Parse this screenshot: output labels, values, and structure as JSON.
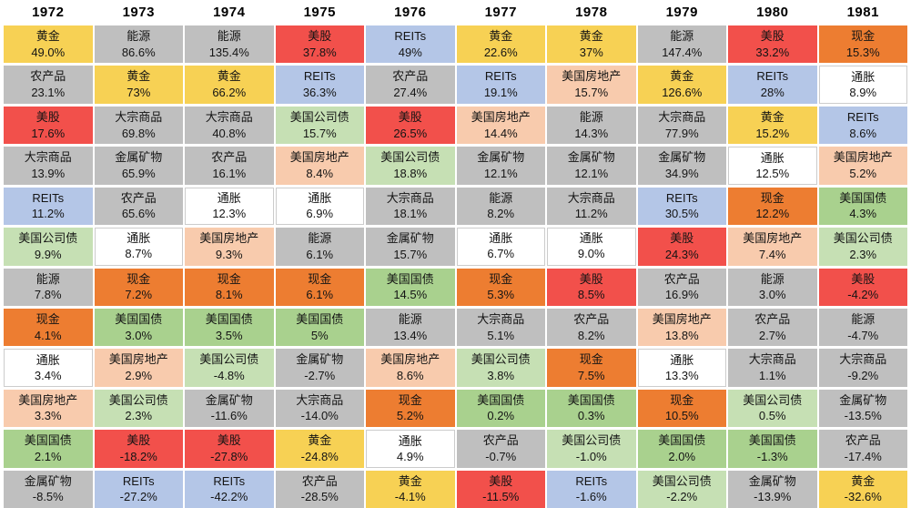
{
  "table": {
    "assets": {
      "gold": {
        "label": "黄金",
        "color": "#F7D154"
      },
      "energy": {
        "label": "能源",
        "color": "#BFBFBF"
      },
      "stocks": {
        "label": "美股",
        "color": "#F2504B"
      },
      "reits": {
        "label": "REITs",
        "color": "#B4C6E7"
      },
      "cash": {
        "label": "现金",
        "color": "#ED7D31"
      },
      "agri": {
        "label": "农产品",
        "color": "#BFBFBF"
      },
      "commodities": {
        "label": "大宗商品",
        "color": "#BFBFBF"
      },
      "corp_bonds": {
        "label": "美国公司债",
        "color": "#C6E0B4"
      },
      "metals": {
        "label": "金属矿物",
        "color": "#BFBFBF"
      },
      "inflation": {
        "label": "通胀",
        "color": "#FFFFFF"
      },
      "real_estate": {
        "label": "美国房地产",
        "color": "#F8CBAD"
      },
      "treasuries": {
        "label": "美国国债",
        "color": "#A9D18E"
      }
    },
    "columns": [
      {
        "year": "1972",
        "cells": [
          {
            "asset": "gold",
            "value": "49.0%"
          },
          {
            "asset": "agri",
            "value": "23.1%"
          },
          {
            "asset": "stocks",
            "value": "17.6%"
          },
          {
            "asset": "commodities",
            "value": "13.9%"
          },
          {
            "asset": "reits",
            "value": "11.2%"
          },
          {
            "asset": "corp_bonds",
            "value": "9.9%"
          },
          {
            "asset": "energy",
            "value": "7.8%"
          },
          {
            "asset": "cash",
            "value": "4.1%"
          },
          {
            "asset": "inflation",
            "value": "3.4%"
          },
          {
            "asset": "real_estate",
            "value": "3.3%"
          },
          {
            "asset": "treasuries",
            "value": "2.1%"
          },
          {
            "asset": "metals",
            "value": "-8.5%"
          }
        ]
      },
      {
        "year": "1973",
        "cells": [
          {
            "asset": "energy",
            "value": "86.6%"
          },
          {
            "asset": "gold",
            "value": "73%"
          },
          {
            "asset": "commodities",
            "value": "69.8%"
          },
          {
            "asset": "metals",
            "value": "65.9%"
          },
          {
            "asset": "agri",
            "value": "65.6%"
          },
          {
            "asset": "inflation",
            "value": "8.7%"
          },
          {
            "asset": "cash",
            "value": "7.2%"
          },
          {
            "asset": "treasuries",
            "value": "3.0%"
          },
          {
            "asset": "real_estate",
            "value": "2.9%"
          },
          {
            "asset": "corp_bonds",
            "value": "2.3%"
          },
          {
            "asset": "stocks",
            "value": "-18.2%"
          },
          {
            "asset": "reits",
            "value": "-27.2%"
          }
        ]
      },
      {
        "year": "1974",
        "cells": [
          {
            "asset": "energy",
            "value": "135.4%"
          },
          {
            "asset": "gold",
            "value": "66.2%"
          },
          {
            "asset": "commodities",
            "value": "40.8%"
          },
          {
            "asset": "agri",
            "value": "16.1%"
          },
          {
            "asset": "inflation",
            "value": "12.3%"
          },
          {
            "asset": "real_estate",
            "value": "9.3%"
          },
          {
            "asset": "cash",
            "value": "8.1%"
          },
          {
            "asset": "treasuries",
            "value": "3.5%"
          },
          {
            "asset": "corp_bonds",
            "value": "-4.8%"
          },
          {
            "asset": "metals",
            "value": "-11.6%"
          },
          {
            "asset": "stocks",
            "value": "-27.8%"
          },
          {
            "asset": "reits",
            "value": "-42.2%"
          }
        ]
      },
      {
        "year": "1975",
        "cells": [
          {
            "asset": "stocks",
            "value": "37.8%"
          },
          {
            "asset": "reits",
            "value": "36.3%"
          },
          {
            "asset": "corp_bonds",
            "value": "15.7%"
          },
          {
            "asset": "real_estate",
            "value": "8.4%"
          },
          {
            "asset": "inflation",
            "value": "6.9%"
          },
          {
            "asset": "energy",
            "value": "6.1%"
          },
          {
            "asset": "cash",
            "value": "6.1%"
          },
          {
            "asset": "treasuries",
            "value": "5%"
          },
          {
            "asset": "metals",
            "value": "-2.7%"
          },
          {
            "asset": "commodities",
            "value": "-14.0%"
          },
          {
            "asset": "gold",
            "value": "-24.8%"
          },
          {
            "asset": "agri",
            "value": "-28.5%"
          }
        ]
      },
      {
        "year": "1976",
        "cells": [
          {
            "asset": "reits",
            "value": "49%"
          },
          {
            "asset": "agri",
            "value": "27.4%"
          },
          {
            "asset": "stocks",
            "value": "26.5%"
          },
          {
            "asset": "corp_bonds",
            "value": "18.8%"
          },
          {
            "asset": "commodities",
            "value": "18.1%"
          },
          {
            "asset": "metals",
            "value": "15.7%"
          },
          {
            "asset": "treasuries",
            "value": "14.5%"
          },
          {
            "asset": "energy",
            "value": "13.4%"
          },
          {
            "asset": "real_estate",
            "value": "8.6%"
          },
          {
            "asset": "cash",
            "value": "5.2%"
          },
          {
            "asset": "inflation",
            "value": "4.9%"
          },
          {
            "asset": "gold",
            "value": "-4.1%"
          }
        ]
      },
      {
        "year": "1977",
        "cells": [
          {
            "asset": "gold",
            "value": "22.6%"
          },
          {
            "asset": "reits",
            "value": "19.1%"
          },
          {
            "asset": "real_estate",
            "value": "14.4%"
          },
          {
            "asset": "metals",
            "value": "12.1%"
          },
          {
            "asset": "energy",
            "value": "8.2%"
          },
          {
            "asset": "inflation",
            "value": "6.7%"
          },
          {
            "asset": "cash",
            "value": "5.3%"
          },
          {
            "asset": "commodities",
            "value": "5.1%"
          },
          {
            "asset": "corp_bonds",
            "value": "3.8%"
          },
          {
            "asset": "treasuries",
            "value": "0.2%"
          },
          {
            "asset": "agri",
            "value": "-0.7%"
          },
          {
            "asset": "stocks",
            "value": "-11.5%"
          }
        ]
      },
      {
        "year": "1978",
        "cells": [
          {
            "asset": "gold",
            "value": "37%"
          },
          {
            "asset": "real_estate",
            "value": "15.7%"
          },
          {
            "asset": "energy",
            "value": "14.3%"
          },
          {
            "asset": "metals",
            "value": "12.1%"
          },
          {
            "asset": "commodities",
            "value": "11.2%"
          },
          {
            "asset": "inflation",
            "value": "9.0%"
          },
          {
            "asset": "stocks",
            "value": "8.5%"
          },
          {
            "asset": "agri",
            "value": "8.2%"
          },
          {
            "asset": "cash",
            "value": "7.5%"
          },
          {
            "asset": "treasuries",
            "value": "0.3%"
          },
          {
            "asset": "corp_bonds",
            "value": "-1.0%"
          },
          {
            "asset": "reits",
            "value": "-1.6%"
          }
        ]
      },
      {
        "year": "1979",
        "cells": [
          {
            "asset": "energy",
            "value": "147.4%"
          },
          {
            "asset": "gold",
            "value": "126.6%"
          },
          {
            "asset": "commodities",
            "value": "77.9%"
          },
          {
            "asset": "metals",
            "value": "34.9%"
          },
          {
            "asset": "reits",
            "value": "30.5%"
          },
          {
            "asset": "stocks",
            "value": "24.3%"
          },
          {
            "asset": "agri",
            "value": "16.9%"
          },
          {
            "asset": "real_estate",
            "value": "13.8%"
          },
          {
            "asset": "inflation",
            "value": "13.3%"
          },
          {
            "asset": "cash",
            "value": "10.5%"
          },
          {
            "asset": "treasuries",
            "value": "2.0%"
          },
          {
            "asset": "corp_bonds",
            "value": "-2.2%"
          }
        ]
      },
      {
        "year": "1980",
        "cells": [
          {
            "asset": "stocks",
            "value": "33.2%"
          },
          {
            "asset": "reits",
            "value": "28%"
          },
          {
            "asset": "gold",
            "value": "15.2%"
          },
          {
            "asset": "inflation",
            "value": "12.5%"
          },
          {
            "asset": "cash",
            "value": "12.2%"
          },
          {
            "asset": "real_estate",
            "value": "7.4%"
          },
          {
            "asset": "energy",
            "value": "3.0%"
          },
          {
            "asset": "agri",
            "value": "2.7%"
          },
          {
            "asset": "commodities",
            "value": "1.1%"
          },
          {
            "asset": "corp_bonds",
            "value": "0.5%"
          },
          {
            "asset": "treasuries",
            "value": "-1.3%"
          },
          {
            "asset": "metals",
            "value": "-13.9%"
          }
        ]
      },
      {
        "year": "1981",
        "cells": [
          {
            "asset": "cash",
            "value": "15.3%"
          },
          {
            "asset": "inflation",
            "value": "8.9%"
          },
          {
            "asset": "reits",
            "value": "8.6%"
          },
          {
            "asset": "real_estate",
            "value": "5.2%"
          },
          {
            "asset": "treasuries",
            "value": "4.3%"
          },
          {
            "asset": "corp_bonds",
            "value": "2.3%"
          },
          {
            "asset": "stocks",
            "value": "-4.2%"
          },
          {
            "asset": "energy",
            "value": "-4.7%"
          },
          {
            "asset": "commodities",
            "value": "-9.2%"
          },
          {
            "asset": "metals",
            "value": "-13.5%"
          },
          {
            "asset": "agri",
            "value": "-17.4%"
          },
          {
            "asset": "gold",
            "value": "-32.6%"
          }
        ]
      }
    ]
  },
  "chart_data": {
    "type": "table",
    "title": "",
    "legend_position": "none",
    "years": [
      "1972",
      "1973",
      "1974",
      "1975",
      "1976",
      "1977",
      "1978",
      "1979",
      "1980",
      "1981"
    ],
    "asset_classes": [
      "黄金",
      "能源",
      "美股",
      "REITs",
      "现金",
      "农产品",
      "大宗商品",
      "美国公司债",
      "金属矿物",
      "通胀",
      "美国房地产",
      "美国国债"
    ],
    "ranked_returns_by_year": {
      "1972": [
        [
          "黄金",
          49.0
        ],
        [
          "农产品",
          23.1
        ],
        [
          "美股",
          17.6
        ],
        [
          "大宗商品",
          13.9
        ],
        [
          "REITs",
          11.2
        ],
        [
          "美国公司债",
          9.9
        ],
        [
          "能源",
          7.8
        ],
        [
          "现金",
          4.1
        ],
        [
          "通胀",
          3.4
        ],
        [
          "美国房地产",
          3.3
        ],
        [
          "美国国债",
          2.1
        ],
        [
          "金属矿物",
          -8.5
        ]
      ],
      "1973": [
        [
          "能源",
          86.6
        ],
        [
          "黄金",
          73
        ],
        [
          "大宗商品",
          69.8
        ],
        [
          "金属矿物",
          65.9
        ],
        [
          "农产品",
          65.6
        ],
        [
          "通胀",
          8.7
        ],
        [
          "现金",
          7.2
        ],
        [
          "美国国债",
          3.0
        ],
        [
          "美国房地产",
          2.9
        ],
        [
          "美国公司债",
          2.3
        ],
        [
          "美股",
          -18.2
        ],
        [
          "REITs",
          -27.2
        ]
      ],
      "1974": [
        [
          "能源",
          135.4
        ],
        [
          "黄金",
          66.2
        ],
        [
          "大宗商品",
          40.8
        ],
        [
          "农产品",
          16.1
        ],
        [
          "通胀",
          12.3
        ],
        [
          "美国房地产",
          9.3
        ],
        [
          "现金",
          8.1
        ],
        [
          "美国国债",
          3.5
        ],
        [
          "美国公司债",
          -4.8
        ],
        [
          "金属矿物",
          -11.6
        ],
        [
          "美股",
          -27.8
        ],
        [
          "REITs",
          -42.2
        ]
      ],
      "1975": [
        [
          "美股",
          37.8
        ],
        [
          "REITs",
          36.3
        ],
        [
          "美国公司债",
          15.7
        ],
        [
          "美国房地产",
          8.4
        ],
        [
          "通胀",
          6.9
        ],
        [
          "能源",
          6.1
        ],
        [
          "现金",
          6.1
        ],
        [
          "美国国债",
          5
        ],
        [
          "金属矿物",
          -2.7
        ],
        [
          "大宗商品",
          -14.0
        ],
        [
          "黄金",
          -24.8
        ],
        [
          "农产品",
          -28.5
        ]
      ],
      "1976": [
        [
          "REITs",
          49
        ],
        [
          "农产品",
          27.4
        ],
        [
          "美股",
          26.5
        ],
        [
          "美国公司债",
          18.8
        ],
        [
          "大宗商品",
          18.1
        ],
        [
          "金属矿物",
          15.7
        ],
        [
          "美国国债",
          14.5
        ],
        [
          "能源",
          13.4
        ],
        [
          "美国房地产",
          8.6
        ],
        [
          "现金",
          5.2
        ],
        [
          "通胀",
          4.9
        ],
        [
          "黄金",
          -4.1
        ]
      ],
      "1977": [
        [
          "黄金",
          22.6
        ],
        [
          "REITs",
          19.1
        ],
        [
          "美国房地产",
          14.4
        ],
        [
          "金属矿物",
          12.1
        ],
        [
          "能源",
          8.2
        ],
        [
          "通胀",
          6.7
        ],
        [
          "现金",
          5.3
        ],
        [
          "大宗商品",
          5.1
        ],
        [
          "美国公司债",
          3.8
        ],
        [
          "美国国债",
          0.2
        ],
        [
          "农产品",
          -0.7
        ],
        [
          "美股",
          -11.5
        ]
      ],
      "1978": [
        [
          "黄金",
          37
        ],
        [
          "美国房地产",
          15.7
        ],
        [
          "能源",
          14.3
        ],
        [
          "金属矿物",
          12.1
        ],
        [
          "大宗商品",
          11.2
        ],
        [
          "通胀",
          9.0
        ],
        [
          "美股",
          8.5
        ],
        [
          "农产品",
          8.2
        ],
        [
          "现金",
          7.5
        ],
        [
          "美国国债",
          0.3
        ],
        [
          "美国公司债",
          -1.0
        ],
        [
          "REITs",
          -1.6
        ]
      ],
      "1979": [
        [
          "能源",
          147.4
        ],
        [
          "黄金",
          126.6
        ],
        [
          "大宗商品",
          77.9
        ],
        [
          "金属矿物",
          34.9
        ],
        [
          "REITs",
          30.5
        ],
        [
          "美股",
          24.3
        ],
        [
          "农产品",
          16.9
        ],
        [
          "美国房地产",
          13.8
        ],
        [
          "通胀",
          13.3
        ],
        [
          "现金",
          10.5
        ],
        [
          "美国国债",
          2.0
        ],
        [
          "美国公司债",
          -2.2
        ]
      ],
      "1980": [
        [
          "美股",
          33.2
        ],
        [
          "REITs",
          28
        ],
        [
          "黄金",
          15.2
        ],
        [
          "通胀",
          12.5
        ],
        [
          "现金",
          12.2
        ],
        [
          "美国房地产",
          7.4
        ],
        [
          "能源",
          3.0
        ],
        [
          "农产品",
          2.7
        ],
        [
          "大宗商品",
          1.1
        ],
        [
          "美国公司债",
          0.5
        ],
        [
          "美国国债",
          -1.3
        ],
        [
          "金属矿物",
          -13.9
        ]
      ],
      "1981": [
        [
          "现金",
          15.3
        ],
        [
          "通胀",
          8.9
        ],
        [
          "REITs",
          8.6
        ],
        [
          "美国房地产",
          5.2
        ],
        [
          "美国国债",
          4.3
        ],
        [
          "美国公司债",
          2.3
        ],
        [
          "美股",
          -4.2
        ],
        [
          "能源",
          -4.7
        ],
        [
          "大宗商品",
          -9.2
        ],
        [
          "金属矿物",
          -13.5
        ],
        [
          "农产品",
          -17.4
        ],
        [
          "黄金",
          -32.6
        ]
      ]
    },
    "colors": {
      "黄金": "#F7D154",
      "能源": "#BFBFBF",
      "美股": "#F2504B",
      "REITs": "#B4C6E7",
      "现金": "#ED7D31",
      "农产品": "#BFBFBF",
      "大宗商品": "#BFBFBF",
      "美国公司债": "#C6E0B4",
      "金属矿物": "#BFBFBF",
      "通胀": "#FFFFFF",
      "美国房地产": "#F8CBAD",
      "美国国债": "#A9D18E"
    }
  }
}
